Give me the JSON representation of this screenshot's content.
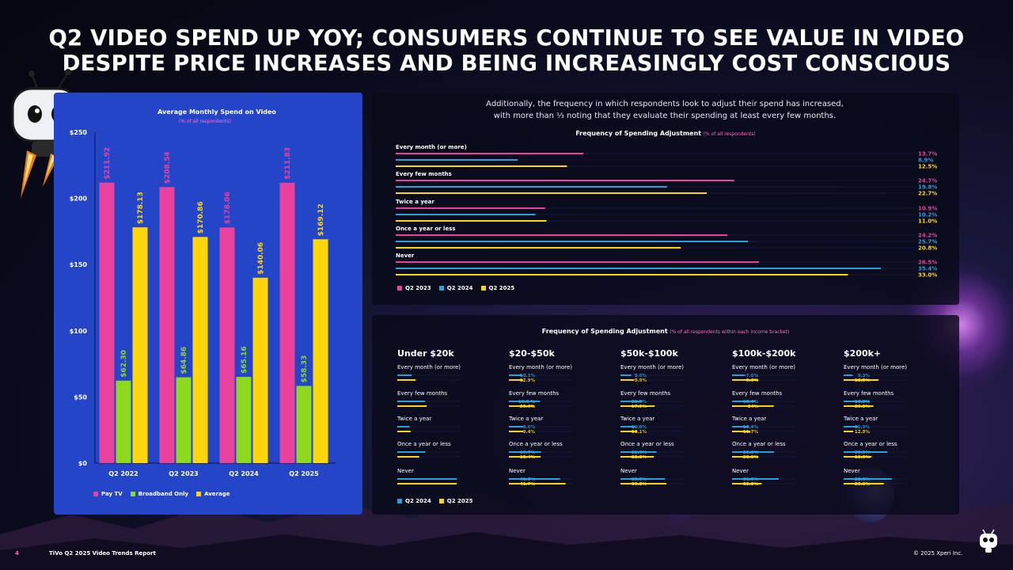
{
  "title_line1": "Q2 VIDEO SPEND UP YOY; CONSUMERS CONTINUE TO SEE VALUE IN VIDEO",
  "title_line2": "DESPITE PRICE INCREASES AND BEING INCREASINGLY COST CONSCIOUS",
  "description_line1": "Additionally, the frequency in which respondents look to adjust their spend has increased,",
  "description_line2": "with more than ⅓ noting that they evaluate their spending at least every few months.",
  "colors": {
    "pink": "#e8429c",
    "green": "#8ed81f",
    "yellow": "#ffd60a",
    "blue": "#2a9fd8",
    "panel_blue": "#2545c9"
  },
  "footer": {
    "page": "4",
    "report": "TiVo Q2 2025 Video Trends Report",
    "copyright": "© 2025 Xperi Inc."
  },
  "icons": {
    "mascot": "robot-mascot-icon",
    "logo": "tivo-logo-icon"
  },
  "chart_data": [
    {
      "type": "bar",
      "title": "Average Monthly Spend on Video",
      "subtitle": "(% of all respondents)",
      "categories": [
        "Q2 2022",
        "Q2 2023",
        "Q2 2024",
        "Q2 2025"
      ],
      "series": [
        {
          "name": "Pay TV",
          "color": "#e8429c",
          "values": [
            211.92,
            208.54,
            178.06,
            211.83
          ],
          "labels": [
            "$211.92",
            "$208.54",
            "$178.06",
            "$211.83"
          ]
        },
        {
          "name": "Broadband Only",
          "color": "#8ed81f",
          "values": [
            62.3,
            64.86,
            65.16,
            58.33
          ],
          "labels": [
            "$62.30",
            "$64.86",
            "$65.16",
            "$58.33"
          ]
        },
        {
          "name": "Average",
          "color": "#ffd60a",
          "values": [
            178.13,
            170.86,
            140.06,
            169.12
          ],
          "labels": [
            "$178.13",
            "$170.86",
            "$140.06",
            "$169.12"
          ]
        }
      ],
      "ylim": [
        0,
        250
      ],
      "yticks": [
        0,
        50,
        100,
        150,
        200,
        250
      ],
      "ytick_labels": [
        "$0",
        "$50",
        "$100",
        "$150",
        "$200",
        "$250"
      ],
      "legend_position": "bottom-left"
    },
    {
      "type": "bar",
      "orientation": "horizontal",
      "title": "Frequency of Spending Adjustment",
      "subtitle": "(% of all respondents)",
      "categories": [
        "Every month (or more)",
        "Every few months",
        "Twice a year",
        "Once a year or less",
        "Never"
      ],
      "series": [
        {
          "name": "Q2 2023",
          "color": "#e8429c",
          "values": [
            13.7,
            24.7,
            10.9,
            24.2,
            26.5
          ],
          "labels": [
            "13.7%",
            "24.7%",
            "10.9%",
            "24.2%",
            "26.5%"
          ]
        },
        {
          "name": "Q2 2024",
          "color": "#2a9fd8",
          "values": [
            8.9,
            19.8,
            10.2,
            25.7,
            35.4
          ],
          "labels": [
            "8.9%",
            "19.8%",
            "10.2%",
            "25.7%",
            "35.4%"
          ]
        },
        {
          "name": "Q2 2025",
          "color": "#ffd60a",
          "values": [
            12.5,
            22.7,
            11.0,
            20.8,
            33.0
          ],
          "labels": [
            "12.5%",
            "22.7%",
            "11.0%",
            "20.8%",
            "33.0%"
          ]
        }
      ],
      "legend_position": "bottom-left"
    },
    {
      "type": "bar",
      "orientation": "horizontal",
      "title": "Frequency of Spending Adjustment",
      "subtitle": "(% of all respondents within each income bracket)",
      "categories": [
        "Every month (or more)",
        "Every few months",
        "Twice a year",
        "Once a year or less",
        "Never"
      ],
      "series_names": [
        "Q2 2024",
        "Q2 2025"
      ],
      "series_colors": [
        "#2a9fd8",
        "#ffd60a"
      ],
      "groups": [
        {
          "name": "Under $20k",
          "q2_2024": [
            10.1,
            19.5,
            8.6,
            19.7,
            41.8
          ],
          "q2_2025": [
            12.9,
            20.6,
            9.4,
            15.4,
            41.7
          ],
          "labels_2024": [
            "10.1%",
            "19.5 %",
            "8.6%",
            "19.7%",
            "41.8%"
          ],
          "labels_2025": [
            "12.9%",
            "20.6%",
            "9.4%",
            "15.4%",
            "41.7%"
          ]
        },
        {
          "name": "$20-$50k",
          "q2_2024": [
            9.6,
            21.9,
            10.0,
            22.6,
            35.9
          ],
          "q2_2025": [
            9.9,
            17.9,
            10.1,
            22.3,
            39.8
          ],
          "labels_2024": [
            "9.6%",
            "21.9%",
            "10.0%",
            "22.6%",
            "35.9%"
          ],
          "labels_2025": [
            "9.9%",
            "17.9%",
            "10.1%",
            "22.3%",
            "39.8%"
          ]
        },
        {
          "name": "$50k-$100k",
          "q2_2024": [
            7.6,
            15.4,
            10.4,
            25.3,
            31.3
          ],
          "q2_2025": [
            9.6,
            24.0,
            11.7,
            23.5,
            32.3
          ],
          "labels_2024": [
            "7.6%",
            "15.4%",
            "10.4%",
            "25.3%",
            "31.3%"
          ],
          "labels_2025": [
            "9.6%",
            "24%",
            "11.7%",
            "23.5%",
            "32.3%"
          ]
        },
        {
          "name": "$100k-$200k",
          "q2_2024": [
            9.3,
            16.3,
            11.9,
            29.5,
            32.8
          ],
          "q2_2025": [
            18.5,
            29.2,
            12.9,
            18.5,
            20.8
          ],
          "labels_2024": [
            "9.3%",
            "16.3%",
            "11.9%",
            "29.5%",
            "32.8%"
          ],
          "labels_2025": [
            "18.5%",
            "29.2%",
            "12.9%",
            "18.5%",
            "20.8%"
          ]
        },
        {
          "name": "$200k+",
          "q2_2024": [
            6.3,
            18.3,
            10.2,
            30.7,
            33.9
          ],
          "q2_2025": [
            24.5,
            20.9,
            6.7,
            19.6,
            28.2
          ],
          "labels_2024": [
            "6.3%",
            "18.3%",
            "10.2%",
            "30.7%",
            "33.9%"
          ],
          "labels_2025": [
            "24.5%",
            "20.9%",
            "6.7%",
            "19.6%",
            "28.2%"
          ]
        }
      ],
      "legend_position": "bottom-left"
    }
  ]
}
